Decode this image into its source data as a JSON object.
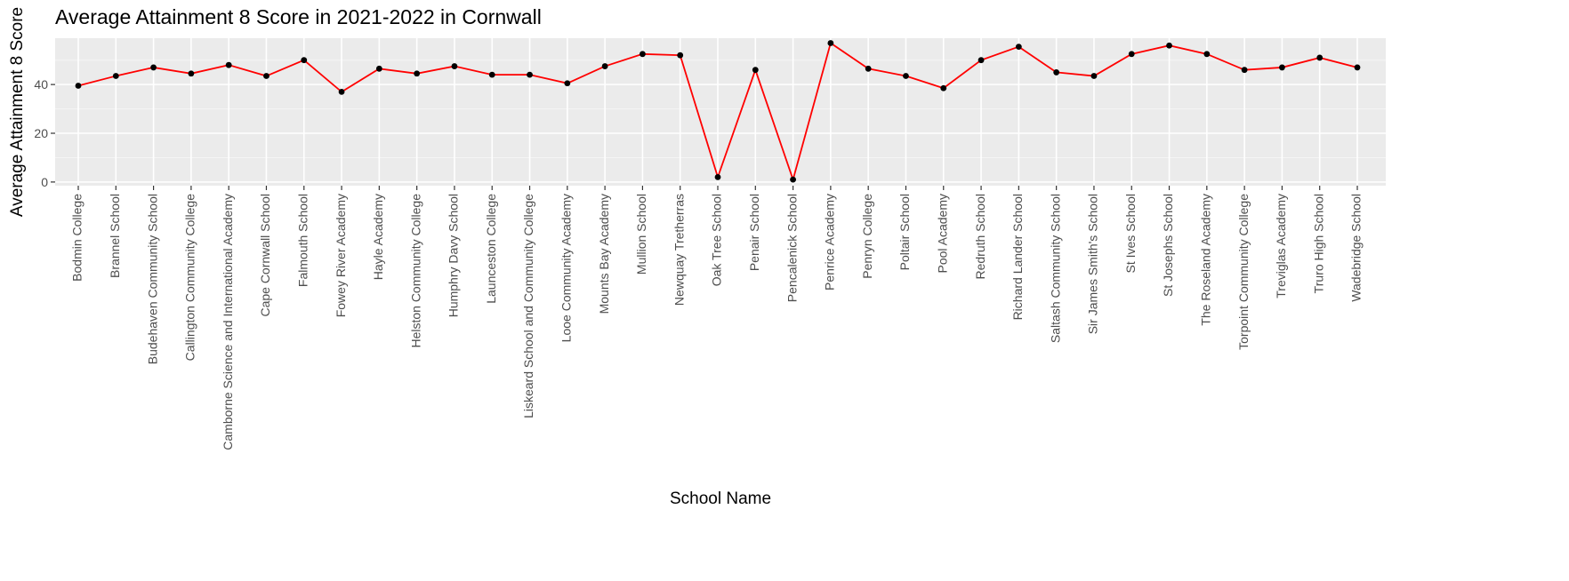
{
  "chart_data": {
    "type": "line",
    "title": "Average Attainment 8 Score in 2021-2022 in Cornwall",
    "xlabel": "School Name",
    "ylabel": "Average Attainment 8 Score",
    "ylim": [
      -1.5,
      59
    ],
    "yticks": [
      0,
      20,
      40
    ],
    "grid": true,
    "legend": "none",
    "line_color": "#ff0000",
    "point_color": "#000000",
    "panel_color": "#ebebeb",
    "categories": [
      "Bodmin College",
      "Brannel School",
      "Budehaven Community School",
      "Callington Community College",
      "Camborne Science and International Academy",
      "Cape Cornwall School",
      "Falmouth School",
      "Fowey River Academy",
      "Hayle Academy",
      "Helston Community College",
      "Humphry Davy School",
      "Launceston College",
      "Liskeard School and Community College",
      "Looe Community Academy",
      "Mounts Bay Academy",
      "Mullion School",
      "Newquay Tretherras",
      "Oak Tree School",
      "Penair School",
      "Pencalenick School",
      "Penrice Academy",
      "Penryn College",
      "Poltair School",
      "Pool Academy",
      "Redruth School",
      "Richard Lander School",
      "Saltash Community School",
      "Sir James Smith's School",
      "St Ives School",
      "St Josephs School",
      "The Roseland Academy",
      "Torpoint Community College",
      "Treviglas Academy",
      "Truro High School",
      "Wadebridge School"
    ],
    "values": [
      39.5,
      43.5,
      47,
      44.5,
      48,
      43.5,
      50,
      37,
      46.5,
      44.5,
      47.5,
      44,
      44,
      40.5,
      47.5,
      52.5,
      52,
      2,
      46,
      1,
      57,
      46.5,
      43.5,
      38.5,
      50,
      55.5,
      45,
      43.5,
      52.5,
      56,
      52.5,
      46,
      47,
      51,
      47
    ]
  }
}
